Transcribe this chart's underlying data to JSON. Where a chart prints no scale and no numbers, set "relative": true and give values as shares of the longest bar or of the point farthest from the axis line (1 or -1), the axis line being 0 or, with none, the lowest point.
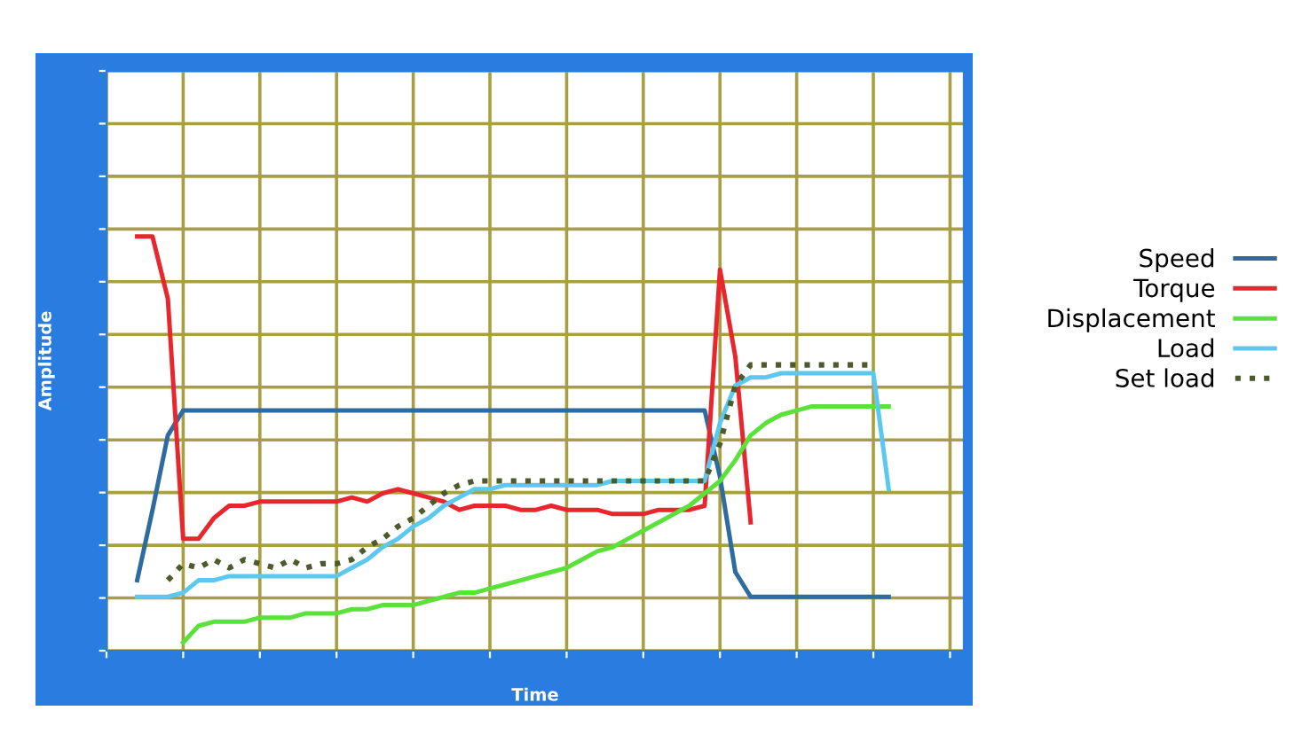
{
  "chart_data": {
    "type": "line",
    "relative": true,
    "xlabel": "Time",
    "ylabel": "Amplitude",
    "grid": true,
    "legend": "right",
    "tick_labels": false,
    "marker": "none",
    "categories": [
      null,
      null,
      null,
      null,
      null,
      null,
      null,
      null,
      null,
      null,
      null,
      null,
      null,
      null,
      null,
      null,
      null,
      null,
      null,
      null,
      null,
      null,
      null,
      null,
      null,
      null,
      null,
      null,
      null,
      null,
      null,
      null,
      null,
      null,
      null,
      null,
      null,
      null,
      null,
      null,
      null,
      null,
      null,
      null,
      null,
      null,
      null,
      null,
      null,
      null,
      null,
      null,
      null,
      null,
      null,
      null
    ],
    "series": [
      {
        "name": "Speed",
        "color": "#2e6b9e",
        "line_style": "solid",
        "values": [
          null,
          null,
          0.17,
          0.34,
          0.52,
          0.58,
          0.58,
          0.58,
          0.58,
          0.58,
          0.58,
          0.58,
          0.58,
          0.58,
          0.58,
          0.58,
          0.58,
          0.58,
          0.58,
          0.58,
          0.58,
          0.58,
          0.58,
          0.58,
          0.58,
          0.58,
          0.58,
          0.58,
          0.58,
          0.58,
          0.58,
          0.58,
          0.58,
          0.58,
          0.58,
          0.58,
          0.58,
          0.58,
          0.58,
          0.58,
          0.42,
          0.19,
          0.13,
          0.13,
          0.13,
          0.13,
          0.13,
          0.13,
          0.13,
          0.13,
          0.13,
          0.13,
          null,
          null,
          null,
          null
        ]
      },
      {
        "name": "Torque",
        "color": "#e8262e",
        "line_style": "solid",
        "values": [
          null,
          null,
          1.0,
          1.0,
          0.85,
          0.27,
          0.27,
          0.32,
          0.35,
          0.35,
          0.36,
          0.36,
          0.36,
          0.36,
          0.36,
          0.36,
          0.37,
          0.36,
          0.38,
          0.39,
          0.38,
          0.37,
          0.36,
          0.34,
          0.35,
          0.35,
          0.35,
          0.34,
          0.34,
          0.35,
          0.34,
          0.34,
          0.34,
          0.33,
          0.33,
          0.33,
          0.34,
          0.34,
          0.34,
          0.35,
          0.92,
          0.71,
          0.31,
          null,
          null,
          null,
          null,
          null,
          null,
          null,
          null,
          null,
          null,
          null,
          null,
          null
        ]
      },
      {
        "name": "Displacement",
        "color": "#5be23a",
        "line_style": "solid",
        "values": [
          null,
          null,
          null,
          null,
          null,
          0.02,
          0.06,
          0.07,
          0.07,
          0.07,
          0.08,
          0.08,
          0.08,
          0.09,
          0.09,
          0.09,
          0.1,
          0.1,
          0.11,
          0.11,
          0.11,
          0.12,
          0.13,
          0.14,
          0.14,
          0.15,
          0.16,
          0.17,
          0.18,
          0.19,
          0.2,
          0.22,
          0.24,
          0.25,
          0.27,
          0.29,
          0.31,
          0.33,
          0.35,
          0.38,
          0.41,
          0.46,
          0.52,
          0.55,
          0.57,
          0.58,
          0.59,
          0.59,
          0.59,
          0.59,
          0.59,
          0.59,
          null,
          null,
          null,
          null
        ]
      },
      {
        "name": "Load",
        "color": "#5cc8ee",
        "line_style": "solid",
        "values": [
          null,
          null,
          0.13,
          0.13,
          0.13,
          0.14,
          0.17,
          0.17,
          0.18,
          0.18,
          0.18,
          0.18,
          0.18,
          0.18,
          0.18,
          0.18,
          0.2,
          0.22,
          0.25,
          0.27,
          0.3,
          0.32,
          0.35,
          0.37,
          0.39,
          0.39,
          0.4,
          0.4,
          0.4,
          0.4,
          0.4,
          0.4,
          0.4,
          0.41,
          0.41,
          0.41,
          0.41,
          0.41,
          0.41,
          0.41,
          0.55,
          0.64,
          0.66,
          0.66,
          0.67,
          0.67,
          0.67,
          0.67,
          0.67,
          0.67,
          0.67,
          0.39,
          null,
          null,
          null,
          null
        ]
      },
      {
        "name": "Set load",
        "color": "#4d5a2c",
        "line_style": "dotted",
        "values": [
          null,
          null,
          null,
          null,
          0.17,
          0.21,
          0.2,
          0.22,
          0.2,
          0.22,
          0.21,
          0.2,
          0.22,
          0.2,
          0.21,
          0.21,
          0.22,
          0.25,
          0.27,
          0.3,
          0.32,
          0.35,
          0.38,
          0.4,
          0.41,
          0.41,
          0.41,
          0.41,
          0.41,
          0.41,
          0.41,
          0.41,
          0.41,
          0.41,
          0.41,
          0.41,
          0.41,
          0.41,
          0.41,
          0.41,
          0.5,
          0.64,
          0.69,
          0.69,
          0.69,
          0.69,
          0.69,
          0.69,
          0.69,
          0.69,
          0.69,
          null,
          null,
          null,
          null,
          null
        ]
      }
    ]
  }
}
